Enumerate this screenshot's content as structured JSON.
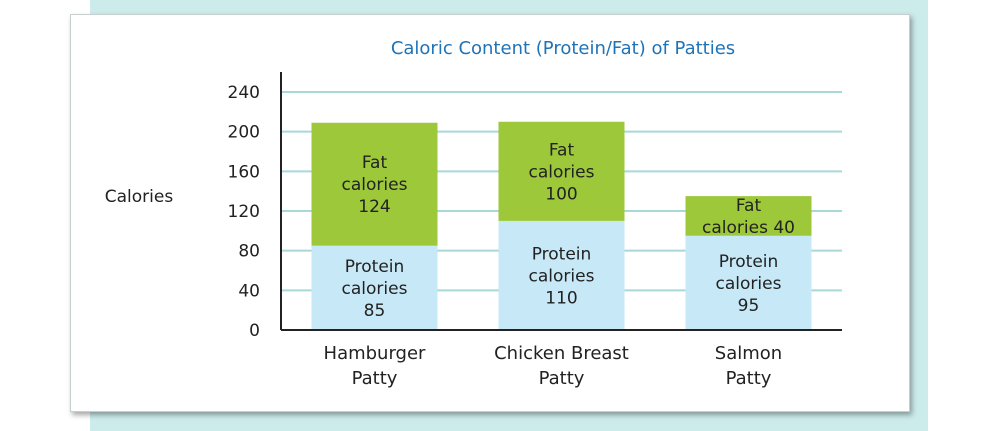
{
  "colors": {
    "title": "#1f73b7",
    "protein": "#c7e8f7",
    "fat": "#9cc83a",
    "grid": "#a9d8d8",
    "axis": "#222222",
    "panel_bg": "#ccebeb"
  },
  "chart_data": {
    "type": "bar",
    "stacked": true,
    "title": "Caloric Content (Protein/Fat) of Patties",
    "xlabel": "",
    "ylabel": "Calories",
    "ylim": [
      0,
      240
    ],
    "yticks": [
      "240",
      "200",
      "160",
      "120",
      "80",
      "40",
      "0"
    ],
    "grid": true,
    "categories": [
      [
        "Hamburger",
        "Patty"
      ],
      [
        "Chicken Breast",
        "Patty"
      ],
      [
        "Salmon",
        "Patty"
      ]
    ],
    "series": [
      {
        "key": "protein",
        "values": [
          85,
          110,
          95
        ],
        "labels": [
          [
            "Protein",
            "calories",
            "85"
          ],
          [
            "Protein",
            "calories",
            "110"
          ],
          [
            "Protein",
            "calories",
            "95"
          ]
        ]
      },
      {
        "key": "fat",
        "values": [
          124,
          100,
          40
        ],
        "labels": [
          [
            "Fat",
            "calories",
            "124"
          ],
          [
            "Fat",
            "calories",
            "100"
          ],
          [
            "Fat",
            "calories 40"
          ]
        ]
      }
    ]
  }
}
